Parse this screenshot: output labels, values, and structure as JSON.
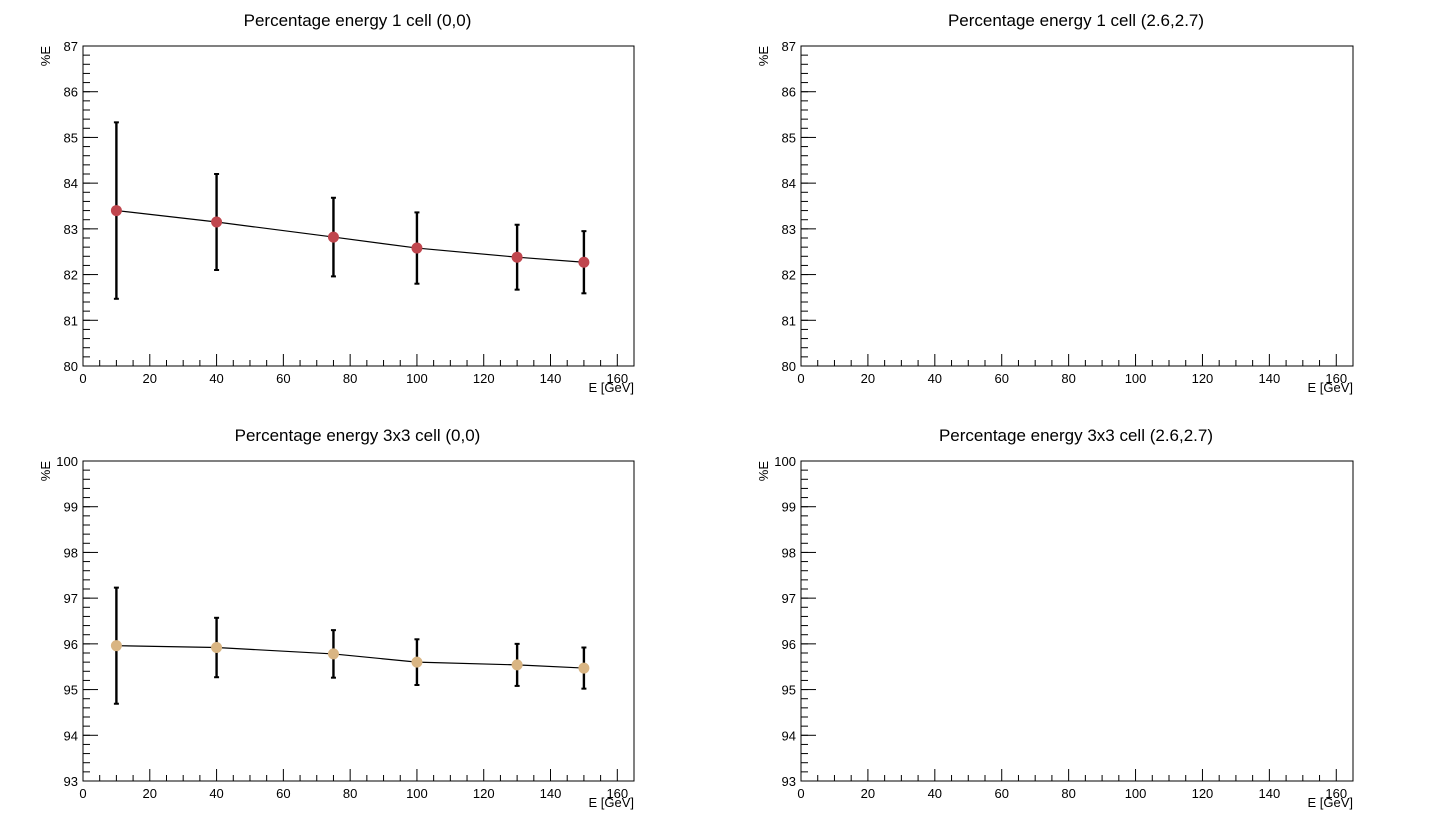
{
  "chart_data": [
    {
      "type": "scatter",
      "title": "Percentage energy 1 cell (0,0)",
      "xlabel": "E [GeV]",
      "ylabel": "%E",
      "xlim": [
        0,
        165
      ],
      "ylim": [
        80,
        87
      ],
      "xticks": [
        0,
        20,
        40,
        60,
        80,
        100,
        120,
        140,
        160
      ],
      "yticks": [
        80,
        81,
        82,
        83,
        84,
        85,
        86,
        87
      ],
      "grid": false,
      "marker_color": "#c0464e",
      "line_color": "#000000",
      "series": [
        {
          "x": [
            10,
            40,
            75,
            100,
            130,
            150
          ],
          "y": [
            83.4,
            83.15,
            82.82,
            82.58,
            82.38,
            82.27
          ],
          "y_err": [
            1.93,
            1.05,
            0.86,
            0.78,
            0.71,
            0.68
          ]
        }
      ]
    },
    {
      "type": "scatter",
      "title": "Percentage energy 1 cell (2.6,2.7)",
      "xlabel": "E [GeV]",
      "ylabel": "%E",
      "xlim": [
        0,
        165
      ],
      "ylim": [
        80,
        87
      ],
      "xticks": [
        0,
        20,
        40,
        60,
        80,
        100,
        120,
        140,
        160
      ],
      "yticks": [
        80,
        81,
        82,
        83,
        84,
        85,
        86,
        87
      ],
      "grid": false,
      "series": []
    },
    {
      "type": "scatter",
      "title": "Percentage energy 3x3 cell (0,0)",
      "xlabel": "E [GeV]",
      "ylabel": "%E",
      "xlim": [
        0,
        165
      ],
      "ylim": [
        93,
        100
      ],
      "xticks": [
        0,
        20,
        40,
        60,
        80,
        100,
        120,
        140,
        160
      ],
      "yticks": [
        93,
        94,
        95,
        96,
        97,
        98,
        99,
        100
      ],
      "grid": false,
      "marker_color": "#d9b583",
      "line_color": "#000000",
      "series": [
        {
          "x": [
            10,
            40,
            75,
            100,
            130,
            150
          ],
          "y": [
            95.96,
            95.92,
            95.78,
            95.6,
            95.54,
            95.47
          ],
          "y_err": [
            1.27,
            0.65,
            0.52,
            0.5,
            0.46,
            0.45
          ]
        }
      ]
    },
    {
      "type": "scatter",
      "title": "Percentage energy 3x3 cell (2.6,2.7)",
      "xlabel": "E [GeV]",
      "ylabel": "%E",
      "xlim": [
        0,
        165
      ],
      "ylim": [
        93,
        100
      ],
      "xticks": [
        0,
        20,
        40,
        60,
        80,
        100,
        120,
        140,
        160
      ],
      "yticks": [
        93,
        94,
        95,
        96,
        97,
        98,
        99,
        100
      ],
      "grid": false,
      "series": []
    }
  ]
}
